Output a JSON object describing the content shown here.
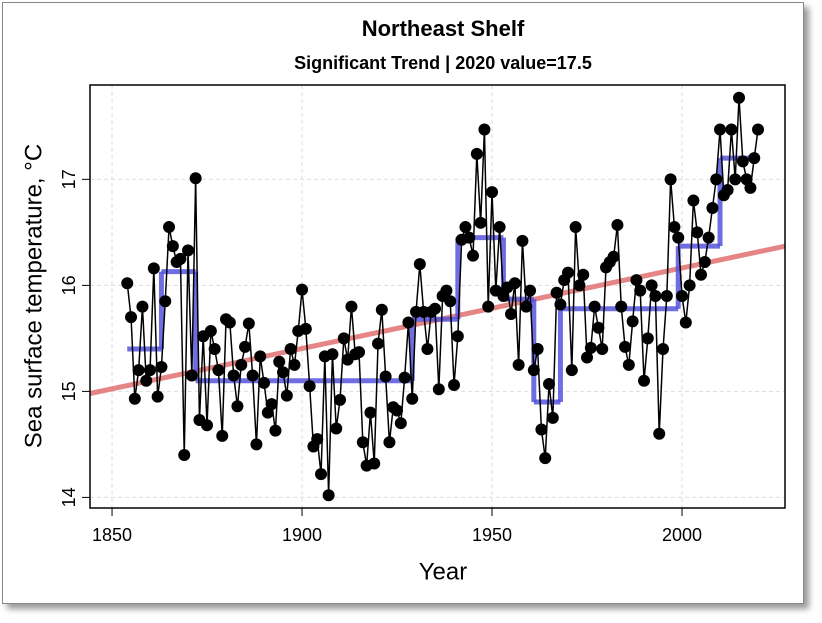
{
  "chart_data": {
    "type": "line",
    "title": "Northeast Shelf",
    "subtitle": "Significant Trend | 2020 value=17.5",
    "x_label": "Year",
    "y_label": "Sea surface temperature, °C",
    "xlim": [
      1844.2,
      2027.1
    ],
    "ylim": [
      13.9,
      17.89
    ],
    "xticks": [
      1850,
      1900,
      1950,
      2000
    ],
    "yticks": [
      14,
      15,
      16,
      17
    ],
    "grid": true,
    "color": "#000000",
    "x": [
      1854,
      1855,
      1856,
      1857,
      1858,
      1859,
      1860,
      1861,
      1862,
      1863,
      1864,
      1865,
      1866,
      1867,
      1868,
      1869,
      1870,
      1871,
      1872,
      1873,
      1874,
      1875,
      1876,
      1877,
      1878,
      1879,
      1880,
      1881,
      1882,
      1883,
      1884,
      1885,
      1886,
      1887,
      1888,
      1889,
      1890,
      1891,
      1892,
      1893,
      1894,
      1895,
      1896,
      1897,
      1898,
      1899,
      1900,
      1901,
      1902,
      1903,
      1904,
      1905,
      1906,
      1907,
      1908,
      1909,
      1910,
      1911,
      1912,
      1913,
      1914,
      1915,
      1916,
      1917,
      1918,
      1919,
      1920,
      1921,
      1922,
      1923,
      1924,
      1925,
      1926,
      1927,
      1928,
      1929,
      1930,
      1931,
      1932,
      1933,
      1934,
      1935,
      1936,
      1937,
      1938,
      1939,
      1940,
      1941,
      1942,
      1943,
      1944,
      1945,
      1946,
      1947,
      1948,
      1949,
      1950,
      1951,
      1952,
      1953,
      1954,
      1955,
      1956,
      1957,
      1958,
      1959,
      1960,
      1961,
      1962,
      1963,
      1964,
      1965,
      1966,
      1967,
      1968,
      1969,
      1970,
      1971,
      1972,
      1973,
      1974,
      1975,
      1976,
      1977,
      1978,
      1979,
      1980,
      1981,
      1982,
      1983,
      1984,
      1985,
      1986,
      1987,
      1988,
      1989,
      1990,
      1991,
      1992,
      1993,
      1994,
      1995,
      1996,
      1997,
      1998,
      1999,
      2000,
      2001,
      2002,
      2003,
      2004,
      2005,
      2006,
      2007,
      2008,
      2009,
      2010,
      2011,
      2012,
      2013,
      2014,
      2015,
      2016,
      2017,
      2018,
      2019,
      2020
    ],
    "values": [
      16.02,
      15.7,
      14.93,
      15.2,
      15.8,
      15.1,
      15.2,
      16.16,
      14.95,
      15.23,
      15.85,
      16.55,
      16.37,
      16.22,
      16.25,
      14.4,
      16.33,
      15.15,
      17.01,
      14.73,
      15.52,
      14.68,
      15.57,
      15.4,
      15.2,
      14.58,
      15.68,
      15.65,
      15.15,
      14.86,
      15.25,
      15.42,
      15.64,
      15.15,
      14.5,
      15.33,
      15.08,
      14.8,
      14.88,
      14.63,
      15.28,
      15.18,
      14.96,
      15.4,
      15.25,
      15.57,
      15.96,
      15.59,
      15.05,
      14.48,
      14.55,
      14.22,
      15.33,
      14.02,
      15.35,
      14.65,
      14.92,
      15.5,
      15.3,
      15.8,
      15.35,
      15.37,
      14.52,
      14.3,
      14.8,
      14.32,
      15.45,
      15.77,
      15.14,
      14.52,
      14.85,
      14.82,
      14.7,
      15.13,
      15.65,
      14.93,
      15.75,
      16.2,
      15.75,
      15.4,
      15.75,
      15.78,
      15.02,
      15.9,
      15.95,
      15.85,
      15.06,
      15.52,
      16.43,
      16.55,
      16.45,
      16.28,
      17.24,
      16.59,
      17.47,
      15.8,
      16.88,
      15.95,
      16.55,
      15.9,
      15.98,
      15.73,
      16.02,
      15.25,
      16.42,
      15.8,
      15.95,
      15.2,
      15.4,
      14.64,
      14.37,
      15.07,
      14.75,
      15.93,
      15.82,
      16.05,
      16.12,
      15.2,
      16.55,
      16.0,
      16.1,
      15.32,
      15.41,
      15.8,
      15.6,
      15.4,
      16.17,
      16.22,
      16.27,
      16.57,
      15.8,
      15.42,
      15.25,
      15.66,
      16.05,
      15.95,
      15.1,
      15.5,
      16.0,
      15.9,
      14.6,
      15.4,
      15.9,
      17.0,
      16.55,
      16.45,
      15.9,
      15.65,
      16.0,
      16.8,
      16.5,
      16.1,
      16.22,
      16.45,
      16.73,
      17.0,
      17.47,
      16.85,
      16.9,
      17.47,
      17.0,
      17.77,
      17.17,
      17.0,
      16.92,
      17.2,
      17.47
    ],
    "steps": {
      "color": "#5555dd",
      "breaks": [
        1854,
        1863,
        1872,
        1929,
        1941,
        1953,
        1961,
        1968,
        1999,
        2010,
        2020
      ],
      "values": [
        15.4,
        16.13,
        15.1,
        15.68,
        16.45,
        15.87,
        14.9,
        15.78,
        16.37,
        17.2
      ]
    },
    "trend": {
      "color": "#e07070",
      "x": [
        1844.2,
        2027.1
      ],
      "values": [
        14.98,
        16.37
      ]
    }
  }
}
